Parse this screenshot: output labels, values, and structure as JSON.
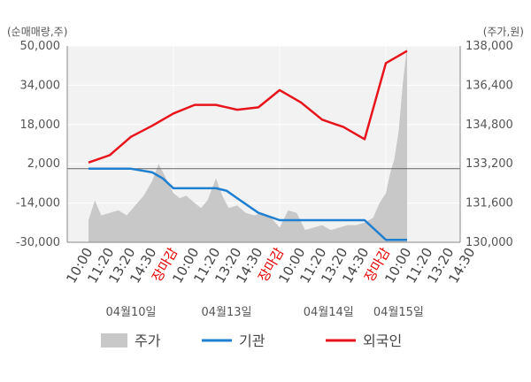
{
  "chart_data": {
    "type": "line",
    "y_left_unit": "(순매매량,주)",
    "y_right_unit": "(주가,원)",
    "y_left_ticks": [
      "50,000",
      "34,000",
      "18,000",
      "2,000",
      "-14,000",
      "-30,000"
    ],
    "y_right_ticks": [
      "138,000",
      "136,400",
      "134,800",
      "133,200",
      "131,600",
      "130,000"
    ],
    "y_left_range": [
      -30000,
      50000
    ],
    "y_right_range": [
      130000,
      138000
    ],
    "x_ticks": [
      {
        "label": "10:00",
        "hl": false
      },
      {
        "label": "11:20",
        "hl": false
      },
      {
        "label": "13:20",
        "hl": false
      },
      {
        "label": "14:30",
        "hl": false
      },
      {
        "label": "장마감",
        "hl": true
      },
      {
        "label": "10:00",
        "hl": false
      },
      {
        "label": "11:20",
        "hl": false
      },
      {
        "label": "13:20",
        "hl": false
      },
      {
        "label": "14:30",
        "hl": false
      },
      {
        "label": "장마감",
        "hl": true
      },
      {
        "label": "10:00",
        "hl": false
      },
      {
        "label": "11:20",
        "hl": false
      },
      {
        "label": "13:20",
        "hl": false
      },
      {
        "label": "14:30",
        "hl": false
      },
      {
        "label": "장마감",
        "hl": true
      },
      {
        "label": "10:00",
        "hl": false
      },
      {
        "label": "11:20",
        "hl": false
      },
      {
        "label": "13:20",
        "hl": false
      },
      {
        "label": "14:30",
        "hl": false
      }
    ],
    "day_labels": [
      "04월10일",
      "04월13일",
      "04월14일",
      "04월15일"
    ],
    "legend": {
      "price": "주가",
      "inst": "기관",
      "foreign": "외국인"
    },
    "colors": {
      "price": "#c8c8c8",
      "inst": "#1f7fd0",
      "foreign": "#e8141c"
    },
    "institution": {
      "x": [
        0,
        1,
        2,
        3,
        3.5,
        4,
        4.5,
        5,
        5.5,
        6,
        6.5,
        7,
        8,
        9,
        9.5,
        10,
        11,
        12,
        13,
        14,
        14.5,
        15
      ],
      "y": [
        0,
        0,
        0,
        -1500,
        -4000,
        -8000,
        -8000,
        -8000,
        -8000,
        -8000,
        -9000,
        -12000,
        -18000,
        -21000,
        -21000,
        -21000,
        -21000,
        -21000,
        -21000,
        -29000,
        -29000,
        -29000
      ]
    },
    "foreign": {
      "x": [
        0,
        1,
        2,
        3,
        4,
        5,
        6,
        7,
        8,
        9,
        10,
        11,
        12,
        13,
        14,
        15
      ],
      "y": [
        2500,
        5500,
        13000,
        17500,
        22500,
        26000,
        26000,
        24000,
        25000,
        32000,
        27000,
        20000,
        17000,
        12000,
        43000,
        48000
      ]
    },
    "price": {
      "x": [
        0,
        0.3,
        0.6,
        1,
        1.4,
        1.8,
        2.2,
        2.6,
        3,
        3.3,
        3.6,
        4,
        4.3,
        4.6,
        5,
        5.3,
        5.6,
        6,
        6.3,
        6.6,
        7,
        7.4,
        7.8,
        8.2,
        8.6,
        9,
        9.4,
        9.8,
        10.2,
        10.6,
        11,
        11.4,
        11.8,
        12.2,
        12.6,
        13,
        13.4,
        13.7,
        14,
        14.2,
        14.4,
        14.6,
        14.8,
        15
      ],
      "y": [
        130900,
        131700,
        131100,
        131200,
        131300,
        131100,
        131500,
        131900,
        132500,
        133200,
        132700,
        132000,
        131800,
        131900,
        131600,
        131400,
        131700,
        132600,
        131900,
        131400,
        131500,
        131200,
        131100,
        131200,
        131000,
        130600,
        131300,
        131200,
        130500,
        130600,
        130700,
        130500,
        130600,
        130700,
        130700,
        130800,
        131000,
        131600,
        132000,
        132800,
        133400,
        134500,
        136500,
        138000
      ]
    }
  }
}
